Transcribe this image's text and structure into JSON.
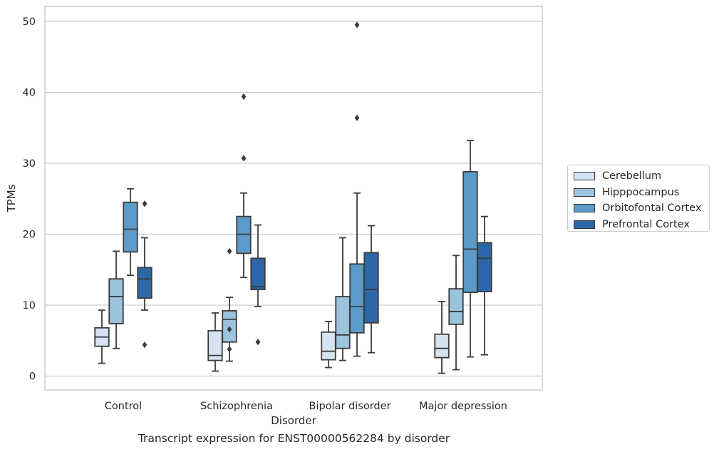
{
  "chart_data": {
    "type": "box",
    "caption": "Transcript expression for ENST00000562284 by disorder",
    "xlabel": "Disorder",
    "ylabel": "TPMs",
    "ylim": [
      -2,
      52
    ],
    "yticks": [
      0,
      10,
      20,
      30,
      40,
      50
    ],
    "grid": true,
    "legend_position": "right",
    "categories": [
      "Control",
      "Schizophrenia",
      "Bipolar disorder",
      "Major depression"
    ],
    "series": [
      {
        "name": "Cerebellum",
        "color": "#d6e4f1",
        "boxes": [
          {
            "whislo": 1.8,
            "q1": 4.2,
            "med": 5.5,
            "q3": 6.8,
            "whishi": 9.3,
            "fliers": []
          },
          {
            "whislo": 0.7,
            "q1": 2.2,
            "med": 2.9,
            "q3": 6.4,
            "whishi": 8.9,
            "fliers": []
          },
          {
            "whislo": 1.2,
            "q1": 2.3,
            "med": 3.5,
            "q3": 6.2,
            "whishi": 7.7,
            "fliers": []
          },
          {
            "whislo": 0.4,
            "q1": 2.6,
            "med": 3.9,
            "q3": 5.9,
            "whishi": 10.5,
            "fliers": []
          }
        ]
      },
      {
        "name": "Hipppocampus",
        "color": "#9ac3de",
        "boxes": [
          {
            "whislo": 3.9,
            "q1": 7.4,
            "med": 11.2,
            "q3": 13.7,
            "whishi": 17.6,
            "fliers": []
          },
          {
            "whislo": 2.1,
            "q1": 4.8,
            "med": 8.0,
            "q3": 9.2,
            "whishi": 11.1,
            "fliers": [
              17.6,
              6.6,
              3.8
            ]
          },
          {
            "whislo": 2.2,
            "q1": 3.9,
            "med": 5.8,
            "q3": 11.2,
            "whishi": 19.5,
            "fliers": []
          },
          {
            "whislo": 0.9,
            "q1": 7.3,
            "med": 9.1,
            "q3": 12.3,
            "whishi": 17.0,
            "fliers": []
          }
        ]
      },
      {
        "name": "Orbitofontal Cortex",
        "color": "#5b9bc9",
        "boxes": [
          {
            "whislo": 14.2,
            "q1": 17.5,
            "med": 20.7,
            "q3": 24.5,
            "whishi": 26.4,
            "fliers": []
          },
          {
            "whislo": 13.9,
            "q1": 17.3,
            "med": 20.0,
            "q3": 22.5,
            "whishi": 25.8,
            "fliers": [
              39.4,
              30.7
            ]
          },
          {
            "whislo": 2.8,
            "q1": 6.1,
            "med": 9.8,
            "q3": 15.8,
            "whishi": 25.8,
            "fliers": [
              49.5,
              36.4
            ]
          },
          {
            "whislo": 2.7,
            "q1": 11.8,
            "med": 17.9,
            "q3": 28.8,
            "whishi": 33.2,
            "fliers": []
          }
        ]
      },
      {
        "name": "Prefrontal Cortex",
        "color": "#2c68a8",
        "boxes": [
          {
            "whislo": 9.3,
            "q1": 11.0,
            "med": 13.7,
            "q3": 15.3,
            "whishi": 19.5,
            "fliers": [
              24.3,
              4.4
            ]
          },
          {
            "whislo": 9.8,
            "q1": 12.2,
            "med": 12.6,
            "q3": 16.6,
            "whishi": 21.3,
            "fliers": [
              4.8
            ]
          },
          {
            "whislo": 3.3,
            "q1": 7.5,
            "med": 12.2,
            "q3": 17.4,
            "whishi": 21.2,
            "fliers": []
          },
          {
            "whislo": 3.0,
            "q1": 11.9,
            "med": 16.6,
            "q3": 18.8,
            "whishi": 22.5,
            "fliers": []
          }
        ]
      }
    ]
  }
}
